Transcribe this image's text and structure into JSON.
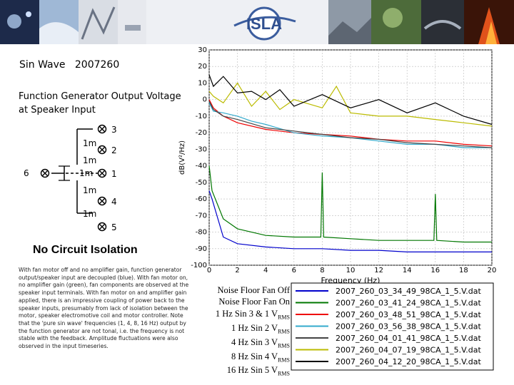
{
  "banner": {
    "logo_text": "ISLA"
  },
  "slide": {
    "title": "Sin Wave   2007260",
    "subtitle": "Function Generator Output Voltage at Speaker Input",
    "heading": "No Circuit Isolation",
    "description": "With fan motor off and no amplifier gain, function generator output/speaker input are decoupled (blue). With fan motor on, no amplifier gain (green), fan components are observed at the speaker input terminals. With fan motor on and amplifier gain applied, there is an impressive coupling of power back to the speaker inputs, presumably from lack of isolation between the motor, speaker electromotive coil and motor controller. Note that the 'pure sin wave' frequencies (1, 4, 8, 16 Hz) output by the function generator are not tonal, i.e. the frequency is not stable with the feedback. Amplitude fluctuations were also observed in the input timeseries."
  },
  "schematic": {
    "left_label": "6",
    "resistor_label": "1m",
    "nodes": [
      "3",
      "2",
      "1",
      "4",
      "5"
    ]
  },
  "conditions": [
    {
      "text": "Noise Floor Fan Off",
      "sub": ""
    },
    {
      "text": "Noise Floor Fan On",
      "sub": ""
    },
    {
      "text": "1 Hz Sin 3 & 1 V",
      "sub": "RMS"
    },
    {
      "text": "1 Hz Sin 2 V",
      "sub": "RMS"
    },
    {
      "text": "4 Hz Sin 3 V",
      "sub": "RMS"
    },
    {
      "text": "8 Hz Sin 4 V",
      "sub": "RMS"
    },
    {
      "text": "16 Hz Sin 5 V",
      "sub": "RMS"
    }
  ],
  "chart_data": {
    "type": "line",
    "xlabel": "Frequency (Hz)",
    "ylabel": "dB(V²/Hz)",
    "xlim": [
      0,
      20
    ],
    "ylim": [
      -100,
      30
    ],
    "xticks": [
      0,
      2,
      4,
      6,
      8,
      10,
      12,
      14,
      16,
      18,
      20
    ],
    "yticks": [
      30,
      20,
      10,
      0,
      -10,
      -20,
      -30,
      -40,
      -50,
      -60,
      -70,
      -80,
      -90,
      -100
    ],
    "grid": true,
    "legend_position": "bottom",
    "series": [
      {
        "name": "2007_260_03_34_49_98CA_1_5.V.dat",
        "color": "#0000cc",
        "x": [
          0,
          0.2,
          1,
          2,
          4,
          6,
          8,
          10,
          12,
          14,
          16,
          18,
          20
        ],
        "y": [
          -55,
          -60,
          -83,
          -87,
          -89,
          -90,
          -90,
          -91,
          -91,
          -92,
          -92,
          -92,
          -92
        ]
      },
      {
        "name": "2007_260_03_41_24_98CA_1_5.V.dat",
        "color": "#007700",
        "x": [
          0,
          0.2,
          1,
          2,
          4,
          6,
          7.9,
          8,
          8.1,
          10,
          12,
          14,
          15.9,
          16,
          16.1,
          18,
          20
        ],
        "y": [
          -40,
          -55,
          -72,
          -78,
          -82,
          -83,
          -83,
          -44,
          -83,
          -84,
          -85,
          -85,
          -85,
          -57,
          -85,
          -86,
          -86
        ]
      },
      {
        "name": "2007_260_03_48_51_98CA_1_5.V.dat",
        "color": "#ee0000",
        "x": [
          0,
          0.3,
          1,
          2,
          4,
          6,
          8,
          10,
          12,
          14,
          16,
          18,
          20
        ],
        "y": [
          0,
          -5,
          -10,
          -14,
          -18,
          -20,
          -21,
          -22,
          -24,
          -25,
          -25,
          -27,
          -28
        ]
      },
      {
        "name": "2007_260_03_56_38_98CA_1_5.V.dat",
        "color": "#33aacc",
        "x": [
          0,
          0.3,
          1,
          2,
          3,
          4,
          6,
          8,
          10,
          12,
          14,
          16,
          18,
          20
        ],
        "y": [
          -2,
          -7,
          -8,
          -10,
          -13,
          -15,
          -20,
          -22,
          -23,
          -25,
          -27,
          -27,
          -29,
          -29
        ]
      },
      {
        "name": "2007_260_04_01_41_98CA_1_5.V.dat",
        "color": "#444444",
        "x": [
          0,
          0.3,
          1,
          2,
          4,
          6,
          8,
          10,
          12,
          14,
          16,
          18,
          20
        ],
        "y": [
          -1,
          -6,
          -10,
          -12,
          -17,
          -19,
          -21,
          -23,
          -24,
          -26,
          -27,
          -28,
          -29
        ]
      },
      {
        "name": "2007_260_04_07_19_98CA_1_5.V.dat",
        "color": "#bbbb00",
        "x": [
          0,
          0.3,
          1,
          2,
          3,
          4,
          5,
          6,
          8,
          9,
          10,
          12,
          14,
          16,
          18,
          20
        ],
        "y": [
          5,
          2,
          -2,
          10,
          -4,
          5,
          -6,
          0,
          -5,
          8,
          -8,
          -10,
          -10,
          -12,
          -14,
          -16
        ]
      },
      {
        "name": "2007_260_04_12_20_98CA_1_5.V.dat",
        "color": "#000000",
        "x": [
          0,
          0.3,
          1,
          2,
          3,
          4,
          5,
          6,
          8,
          10,
          12,
          14,
          16,
          18,
          20
        ],
        "y": [
          15,
          8,
          14,
          4,
          5,
          0,
          6,
          -4,
          3,
          -5,
          0,
          -8,
          -2,
          -10,
          -15
        ]
      }
    ]
  }
}
